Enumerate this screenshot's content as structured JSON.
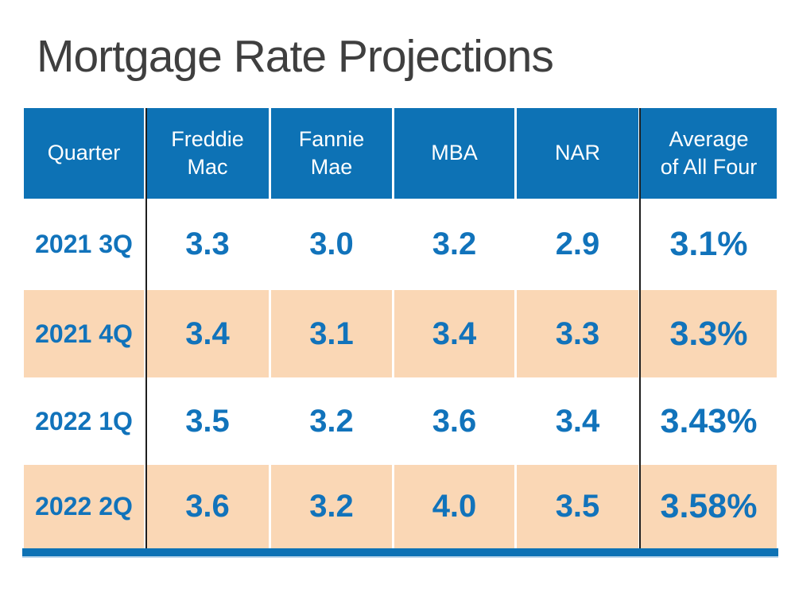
{
  "title": "Mortgage Rate Projections",
  "colors": {
    "header_blue": "#0d72b5",
    "row_peach": "#fad7b5",
    "text_blue": "#1173bb",
    "title_gray": "#3f3f3f",
    "divider_black": "#1e1e1e",
    "bottom_bar_blue": "#0d72b5"
  },
  "table": {
    "columns": [
      "Quarter",
      "Freddie\nMac",
      "Fannie\nMae",
      "MBA",
      "NAR",
      "Average\nof All Four"
    ],
    "rows": [
      {
        "cells": [
          "2021 3Q",
          "3.3",
          "3.0",
          "3.2",
          "2.9",
          "3.1%"
        ]
      },
      {
        "cells": [
          "2021 4Q",
          "3.4",
          "3.1",
          "3.4",
          "3.3",
          "3.3%"
        ]
      },
      {
        "cells": [
          "2022 1Q",
          "3.5",
          "3.2",
          "3.6",
          "3.4",
          "3.43%"
        ]
      },
      {
        "cells": [
          "2022 2Q",
          "3.6",
          "3.2",
          "4.0",
          "3.5",
          "3.58%"
        ]
      }
    ]
  },
  "chart_data": {
    "type": "table",
    "title": "Mortgage Rate Projections",
    "categories": [
      "2021 3Q",
      "2021 4Q",
      "2022 1Q",
      "2022 2Q"
    ],
    "series": [
      {
        "name": "Freddie Mac",
        "values": [
          3.3,
          3.4,
          3.5,
          3.6
        ]
      },
      {
        "name": "Fannie Mae",
        "values": [
          3.0,
          3.1,
          3.2,
          3.2
        ]
      },
      {
        "name": "MBA",
        "values": [
          3.2,
          3.4,
          3.6,
          4.0
        ]
      },
      {
        "name": "NAR",
        "values": [
          2.9,
          3.3,
          3.4,
          3.5
        ]
      },
      {
        "name": "Average of All Four",
        "values": [
          "3.1%",
          "3.3%",
          "3.43%",
          "3.58%"
        ]
      }
    ]
  }
}
